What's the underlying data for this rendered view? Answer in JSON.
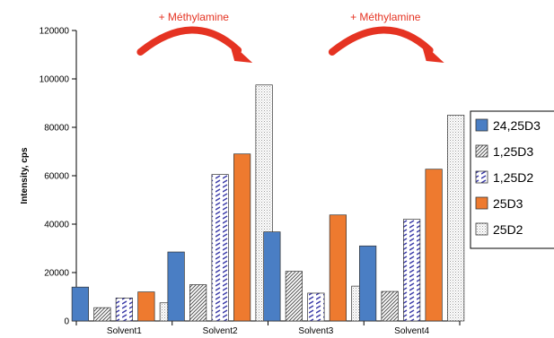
{
  "chart_data": {
    "type": "bar",
    "title": "",
    "xlabel": "",
    "ylabel": "Intensity, cps",
    "ylim": [
      0,
      120000
    ],
    "yticks": [
      0,
      20000,
      40000,
      60000,
      80000,
      100000,
      120000
    ],
    "categories": [
      "Solvent1",
      "Solvent2",
      "Solvent3",
      "Solvent4"
    ],
    "series": [
      {
        "name": "24,25D3",
        "values": [
          14000,
          28500,
          36800,
          31000
        ],
        "color": "#4a7ec4",
        "pattern": "solid"
      },
      {
        "name": "1,25D3",
        "values": [
          5500,
          15000,
          20500,
          12200
        ],
        "color": "#555555",
        "pattern": "diag-hatch"
      },
      {
        "name": "1,25D2",
        "values": [
          9500,
          60500,
          11500,
          42000
        ],
        "color": "#4040a0",
        "pattern": "dash-hatch"
      },
      {
        "name": "25D3",
        "values": [
          12000,
          69000,
          43800,
          62700
        ],
        "color": "#ee7a2f",
        "pattern": "solid"
      },
      {
        "name": "25D2",
        "values": [
          7500,
          97500,
          14400,
          85000
        ],
        "color": "#aaaaaa",
        "pattern": "dots"
      }
    ],
    "legend_position": "right",
    "grid": false,
    "annotations": [
      {
        "text": "+ Méthylamine",
        "from_category": "Solvent1",
        "to_category": "Solvent2"
      },
      {
        "text": "+ Méthylamine",
        "from_category": "Solvent3",
        "to_category": "Solvent4"
      }
    ],
    "arrow_color": "#e53322"
  }
}
